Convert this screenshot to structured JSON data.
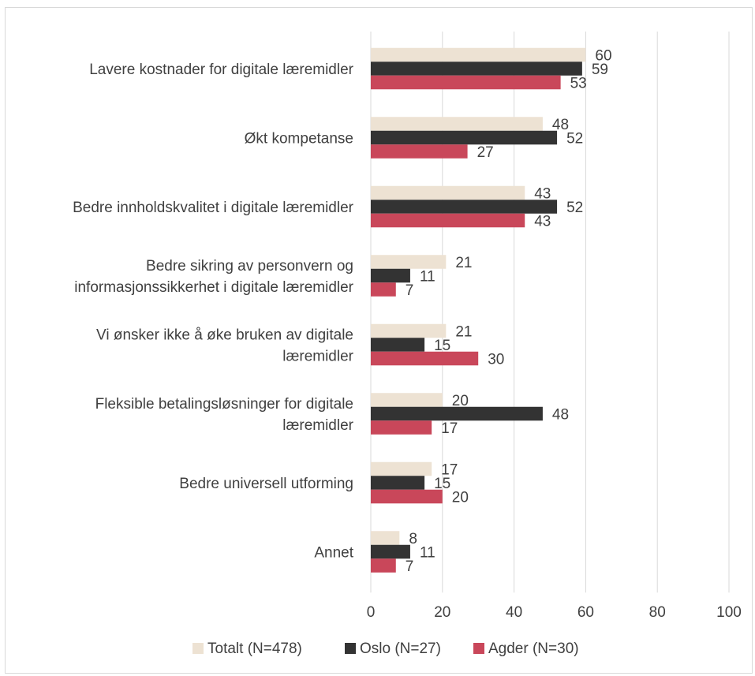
{
  "chart_data": {
    "type": "bar",
    "orientation": "horizontal",
    "categories": [
      "Lavere kostnader for digitale læremidler",
      "Økt kompetanse",
      "Bedre innholdskvalitet i digitale læremidler",
      "Bedre sikring av personvern og informasjonssikkerhet i digitale læremidler",
      "Vi ønsker ikke å øke bruken av digitale læremidler",
      "Fleksible betalingsløsninger for digitale læremidler",
      "Bedre universell utforming",
      "Annet"
    ],
    "category_lines": [
      [
        "Lavere kostnader for digitale læremidler"
      ],
      [
        "Økt kompetanse"
      ],
      [
        "Bedre innholdskvalitet i digitale læremidler"
      ],
      [
        "Bedre sikring av personvern og",
        "informasjonssikkerhet i digitale læremidler"
      ],
      [
        "Vi ønsker ikke å øke bruken av digitale",
        "læremidler"
      ],
      [
        "Fleksible betalingsløsninger for digitale",
        "læremidler"
      ],
      [
        "Bedre universell utforming"
      ],
      [
        "Annet"
      ]
    ],
    "series": [
      {
        "name": "Totalt (N=478)",
        "color": "#ede2d3",
        "values": [
          60,
          48,
          43,
          21,
          21,
          20,
          17,
          8
        ]
      },
      {
        "name": "Oslo (N=27)",
        "color": "#333333",
        "values": [
          59,
          52,
          52,
          11,
          15,
          48,
          15,
          11
        ]
      },
      {
        "name": "Agder (N=30)",
        "color": "#c9475a",
        "values": [
          53,
          27,
          43,
          7,
          30,
          17,
          20,
          7
        ]
      }
    ],
    "xlim": [
      0,
      100
    ],
    "xticks": [
      0,
      20,
      40,
      60,
      80,
      100
    ],
    "title": "",
    "xlabel": "",
    "ylabel": "",
    "grid": true,
    "legend_position": "bottom",
    "gridline_color": "#d9d9d9"
  }
}
